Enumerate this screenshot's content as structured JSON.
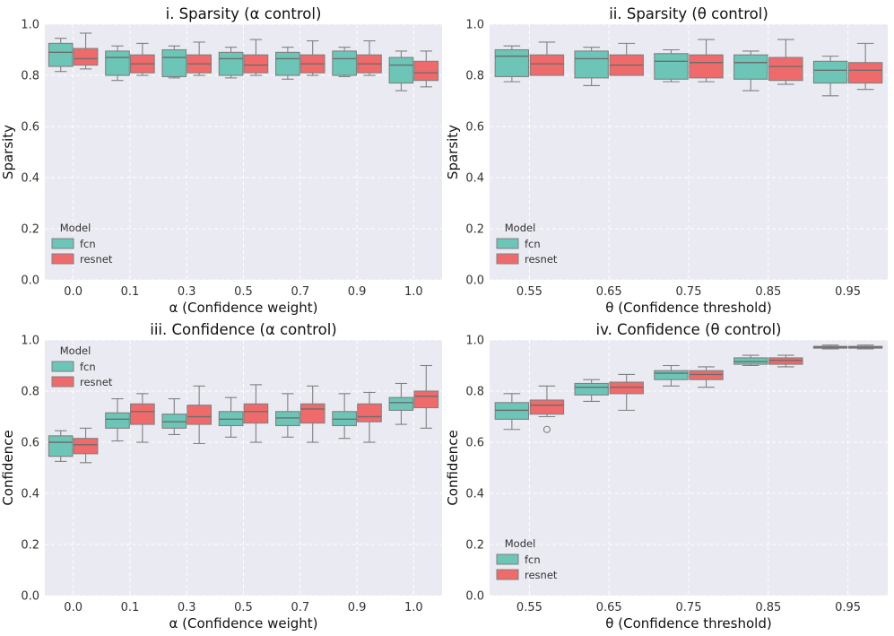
{
  "colors": {
    "fcn": "#6cc5b6",
    "resnet": "#ef6b6b"
  },
  "legend": {
    "title": "Model",
    "entries": [
      "fcn",
      "resnet"
    ]
  },
  "chart_data": [
    {
      "type": "box",
      "title": "i. Sparsity (α control)",
      "xlabel": "α (Confidence weight)",
      "ylabel": "Sparsity",
      "ylim": [
        0,
        1.0
      ],
      "yticks": [
        "0.0",
        "0.2",
        "0.4",
        "0.6",
        "0.8",
        "1.0"
      ],
      "categories": [
        "0.0",
        "0.1",
        "0.3",
        "0.5",
        "0.7",
        "0.9",
        "1.0"
      ],
      "legend_position": "lower-left",
      "series": [
        {
          "name": "fcn",
          "boxes": [
            {
              "min": 0.815,
              "q1": 0.835,
              "median": 0.89,
              "q3": 0.925,
              "max": 0.945
            },
            {
              "min": 0.78,
              "q1": 0.8,
              "median": 0.87,
              "q3": 0.895,
              "max": 0.915
            },
            {
              "min": 0.79,
              "q1": 0.795,
              "median": 0.87,
              "q3": 0.9,
              "max": 0.915
            },
            {
              "min": 0.79,
              "q1": 0.8,
              "median": 0.865,
              "q3": 0.89,
              "max": 0.91
            },
            {
              "min": 0.785,
              "q1": 0.8,
              "median": 0.865,
              "q3": 0.89,
              "max": 0.91
            },
            {
              "min": 0.795,
              "q1": 0.8,
              "median": 0.865,
              "q3": 0.895,
              "max": 0.91
            },
            {
              "min": 0.74,
              "q1": 0.77,
              "median": 0.84,
              "q3": 0.87,
              "max": 0.895
            }
          ]
        },
        {
          "name": "resnet",
          "boxes": [
            {
              "min": 0.825,
              "q1": 0.84,
              "median": 0.865,
              "q3": 0.905,
              "max": 0.965
            },
            {
              "min": 0.8,
              "q1": 0.81,
              "median": 0.845,
              "q3": 0.88,
              "max": 0.925
            },
            {
              "min": 0.8,
              "q1": 0.81,
              "median": 0.845,
              "q3": 0.88,
              "max": 0.93
            },
            {
              "min": 0.8,
              "q1": 0.81,
              "median": 0.84,
              "q3": 0.88,
              "max": 0.94
            },
            {
              "min": 0.8,
              "q1": 0.81,
              "median": 0.845,
              "q3": 0.88,
              "max": 0.935
            },
            {
              "min": 0.8,
              "q1": 0.81,
              "median": 0.845,
              "q3": 0.88,
              "max": 0.935
            },
            {
              "min": 0.755,
              "q1": 0.78,
              "median": 0.81,
              "q3": 0.855,
              "max": 0.895
            }
          ]
        }
      ]
    },
    {
      "type": "box",
      "title": "ii. Sparsity (θ control)",
      "xlabel": "θ (Confidence threshold)",
      "ylabel": "Sparsity",
      "ylim": [
        0,
        1.0
      ],
      "yticks": [
        "0.0",
        "0.2",
        "0.4",
        "0.6",
        "0.8",
        "1.0"
      ],
      "categories": [
        "0.55",
        "0.65",
        "0.75",
        "0.85",
        "0.95"
      ],
      "legend_position": "lower-left",
      "series": [
        {
          "name": "fcn",
          "boxes": [
            {
              "min": 0.775,
              "q1": 0.795,
              "median": 0.875,
              "q3": 0.9,
              "max": 0.915
            },
            {
              "min": 0.76,
              "q1": 0.79,
              "median": 0.865,
              "q3": 0.895,
              "max": 0.91
            },
            {
              "min": 0.775,
              "q1": 0.785,
              "median": 0.855,
              "q3": 0.885,
              "max": 0.9
            },
            {
              "min": 0.74,
              "q1": 0.785,
              "median": 0.85,
              "q3": 0.88,
              "max": 0.895
            },
            {
              "min": 0.72,
              "q1": 0.77,
              "median": 0.82,
              "q3": 0.855,
              "max": 0.875
            }
          ]
        },
        {
          "name": "resnet",
          "boxes": [
            {
              "min": 0.8,
              "q1": 0.8,
              "median": 0.845,
              "q3": 0.88,
              "max": 0.93
            },
            {
              "min": 0.8,
              "q1": 0.8,
              "median": 0.84,
              "q3": 0.88,
              "max": 0.925
            },
            {
              "min": 0.775,
              "q1": 0.79,
              "median": 0.85,
              "q3": 0.88,
              "max": 0.94
            },
            {
              "min": 0.765,
              "q1": 0.78,
              "median": 0.835,
              "q3": 0.87,
              "max": 0.94
            },
            {
              "min": 0.745,
              "q1": 0.77,
              "median": 0.82,
              "q3": 0.85,
              "max": 0.925
            }
          ]
        }
      ]
    },
    {
      "type": "box",
      "title": "iii. Confidence (α control)",
      "xlabel": "α (Confidence weight)",
      "ylabel": "Confidence",
      "ylim": [
        0,
        1.0
      ],
      "yticks": [
        "0.0",
        "0.2",
        "0.4",
        "0.6",
        "0.8",
        "1.0"
      ],
      "categories": [
        "0.0",
        "0.1",
        "0.3",
        "0.5",
        "0.7",
        "0.9",
        "1.0"
      ],
      "legend_position": "upper-left",
      "series": [
        {
          "name": "fcn",
          "boxes": [
            {
              "min": 0.525,
              "q1": 0.545,
              "median": 0.6,
              "q3": 0.625,
              "max": 0.645
            },
            {
              "min": 0.605,
              "q1": 0.655,
              "median": 0.69,
              "q3": 0.715,
              "max": 0.77
            },
            {
              "min": 0.63,
              "q1": 0.655,
              "median": 0.68,
              "q3": 0.71,
              "max": 0.77
            },
            {
              "min": 0.62,
              "q1": 0.665,
              "median": 0.69,
              "q3": 0.72,
              "max": 0.775
            },
            {
              "min": 0.62,
              "q1": 0.665,
              "median": 0.695,
              "q3": 0.72,
              "max": 0.79
            },
            {
              "min": 0.615,
              "q1": 0.665,
              "median": 0.69,
              "q3": 0.72,
              "max": 0.79
            },
            {
              "min": 0.67,
              "q1": 0.725,
              "median": 0.755,
              "q3": 0.775,
              "max": 0.83
            }
          ]
        },
        {
          "name": "resnet",
          "boxes": [
            {
              "min": 0.52,
              "q1": 0.555,
              "median": 0.59,
              "q3": 0.615,
              "max": 0.655
            },
            {
              "min": 0.6,
              "q1": 0.67,
              "median": 0.72,
              "q3": 0.75,
              "max": 0.79
            },
            {
              "min": 0.595,
              "q1": 0.67,
              "median": 0.7,
              "q3": 0.745,
              "max": 0.82
            },
            {
              "min": 0.6,
              "q1": 0.675,
              "median": 0.72,
              "q3": 0.75,
              "max": 0.825
            },
            {
              "min": 0.6,
              "q1": 0.675,
              "median": 0.73,
              "q3": 0.75,
              "max": 0.82
            },
            {
              "min": 0.6,
              "q1": 0.68,
              "median": 0.7,
              "q3": 0.75,
              "max": 0.795
            },
            {
              "min": 0.655,
              "q1": 0.735,
              "median": 0.78,
              "q3": 0.8,
              "max": 0.9
            }
          ]
        }
      ]
    },
    {
      "type": "box",
      "title": "iv. Confidence (θ control)",
      "xlabel": "θ (Confidence threshold)",
      "ylabel": "Confidence",
      "ylim": [
        0,
        1.0
      ],
      "yticks": [
        "0.0",
        "0.2",
        "0.4",
        "0.6",
        "0.8",
        "1.0"
      ],
      "categories": [
        "0.55",
        "0.65",
        "0.75",
        "0.85",
        "0.95"
      ],
      "legend_position": "lower-left",
      "series": [
        {
          "name": "fcn",
          "boxes": [
            {
              "min": 0.65,
              "q1": 0.69,
              "median": 0.725,
              "q3": 0.755,
              "max": 0.79
            },
            {
              "min": 0.76,
              "q1": 0.785,
              "median": 0.815,
              "q3": 0.83,
              "max": 0.845
            },
            {
              "min": 0.82,
              "q1": 0.845,
              "median": 0.87,
              "q3": 0.88,
              "max": 0.9
            },
            {
              "min": 0.9,
              "q1": 0.905,
              "median": 0.915,
              "q3": 0.93,
              "max": 0.94
            },
            {
              "min": 0.965,
              "q1": 0.968,
              "median": 0.972,
              "q3": 0.975,
              "max": 0.98
            }
          ]
        },
        {
          "name": "resnet",
          "boxes": [
            {
              "min": 0.7,
              "q1": 0.71,
              "median": 0.745,
              "q3": 0.765,
              "max": 0.82,
              "fliers": [
                0.65
              ]
            },
            {
              "min": 0.725,
              "q1": 0.79,
              "median": 0.815,
              "q3": 0.835,
              "max": 0.865
            },
            {
              "min": 0.815,
              "q1": 0.845,
              "median": 0.865,
              "q3": 0.88,
              "max": 0.895
            },
            {
              "min": 0.895,
              "q1": 0.905,
              "median": 0.92,
              "q3": 0.93,
              "max": 0.94
            },
            {
              "min": 0.965,
              "q1": 0.968,
              "median": 0.972,
              "q3": 0.975,
              "max": 0.98
            }
          ]
        }
      ]
    }
  ]
}
